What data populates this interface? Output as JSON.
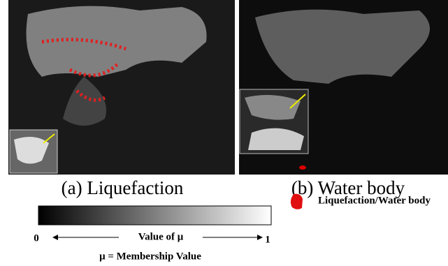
{
  "panels": [
    {
      "caption": "(a) Liquefaction"
    },
    {
      "caption": "(b) Water body"
    }
  ],
  "colorbar": {
    "min": 0,
    "max": 1,
    "axis_label": "Value of μ",
    "note": "μ = Membership Value"
  },
  "legend": {
    "label": "Liquefaction/Water body"
  }
}
